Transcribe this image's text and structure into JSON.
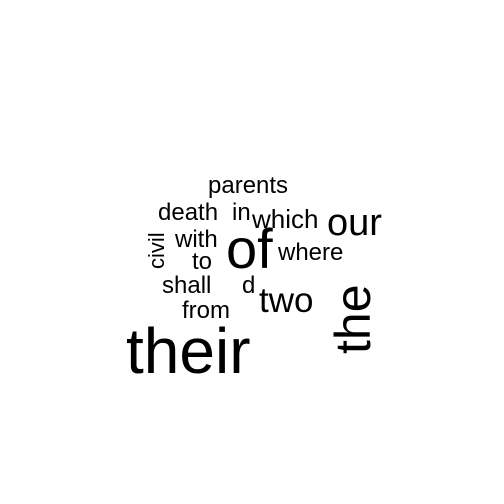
{
  "word_cloud": {
    "words": [
      {
        "text": "their"
      },
      {
        "text": "the"
      },
      {
        "text": "of"
      },
      {
        "text": "our"
      },
      {
        "text": "two"
      },
      {
        "text": "parents"
      },
      {
        "text": "death"
      },
      {
        "text": "in"
      },
      {
        "text": "which"
      },
      {
        "text": "civil"
      },
      {
        "text": "with"
      },
      {
        "text": "where"
      },
      {
        "text": "to"
      },
      {
        "text": "shall"
      },
      {
        "text": "d"
      },
      {
        "text": "from"
      }
    ],
    "text_color": "#000000",
    "background_color": "#ffffff"
  }
}
